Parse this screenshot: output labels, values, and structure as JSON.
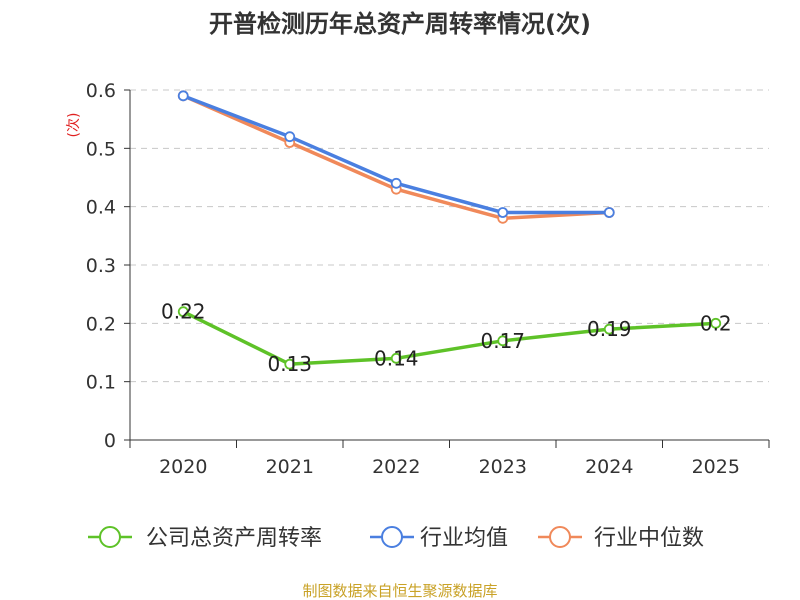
{
  "chart_data": {
    "type": "line",
    "title": "开普检测历年总资产周转率情况(次)",
    "ylabel": "(次)",
    "xlabel": "",
    "categories": [
      "2020",
      "2021",
      "2022",
      "2023",
      "2024",
      "2025"
    ],
    "ylim": [
      0,
      0.6
    ],
    "yticks": [
      "0",
      "0.1",
      "0.2",
      "0.3",
      "0.4",
      "0.5",
      "0.6"
    ],
    "grid": true,
    "legend_position": "bottom",
    "series": [
      {
        "name": "公司总资产周转率",
        "color": "#5ec228",
        "values": [
          0.22,
          0.13,
          0.14,
          0.17,
          0.19,
          0.2
        ],
        "labels": [
          "0.22",
          "0.13",
          "0.14",
          "0.17",
          "0.19",
          "0.2"
        ]
      },
      {
        "name": "行业均值",
        "color": "#4a7fe0",
        "values": [
          0.59,
          0.52,
          0.44,
          0.39,
          0.39,
          null
        ]
      },
      {
        "name": "行业中位数",
        "color": "#f0895a",
        "values": [
          0.59,
          0.51,
          0.43,
          0.38,
          0.39,
          null
        ]
      }
    ],
    "source": "制图数据来自恒生聚源数据库"
  }
}
